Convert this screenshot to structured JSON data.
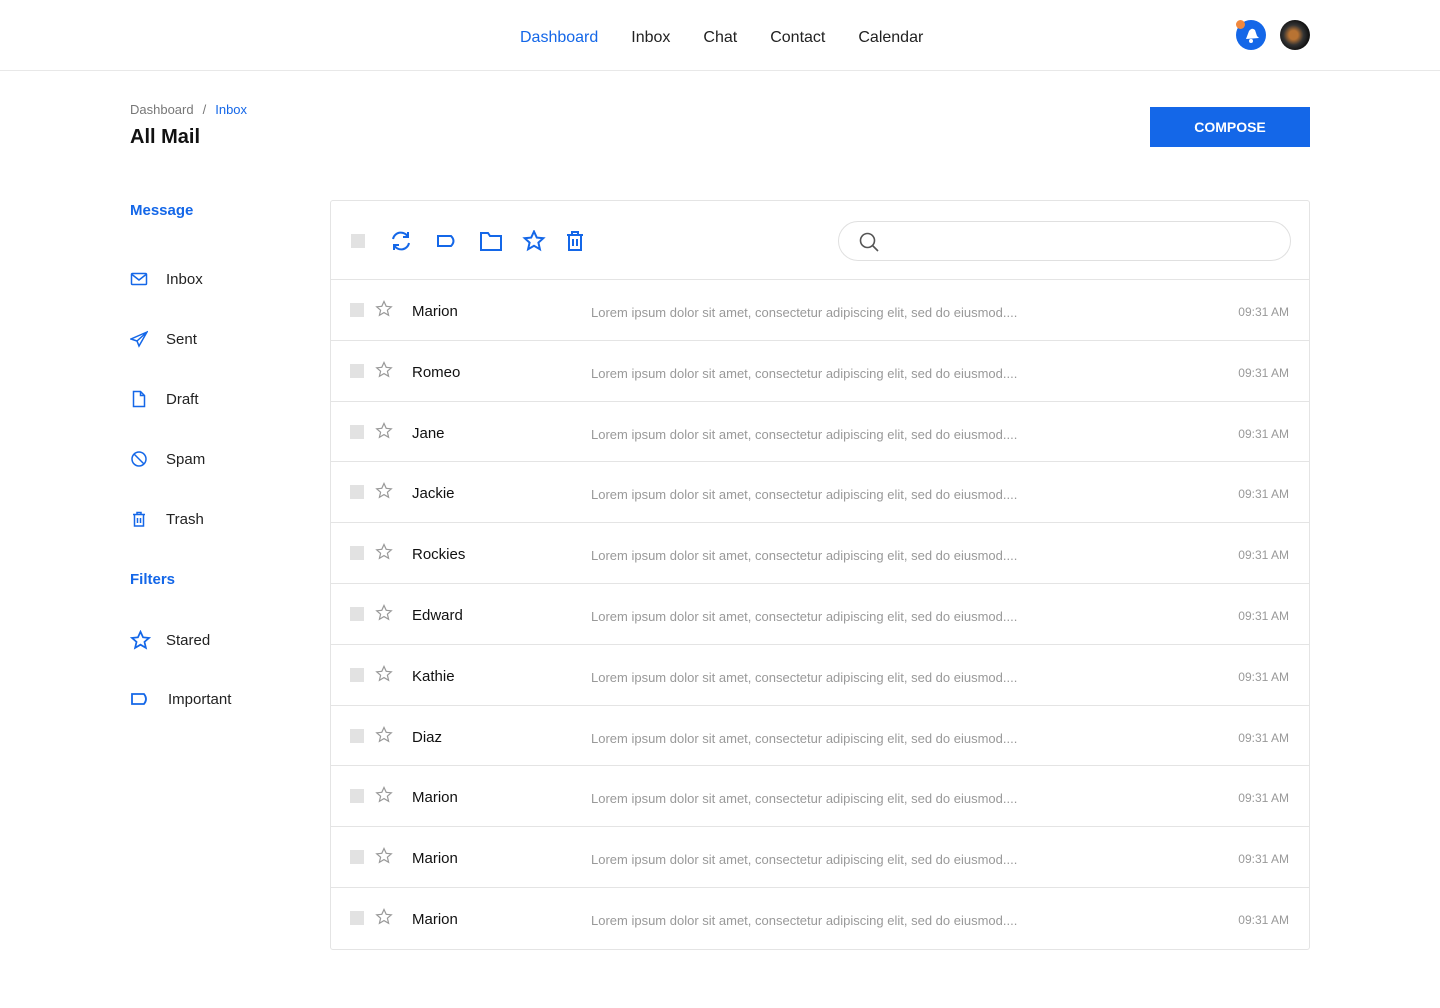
{
  "nav": {
    "items": [
      {
        "label": "Dashboard",
        "active": true
      },
      {
        "label": "Inbox"
      },
      {
        "label": "Chat"
      },
      {
        "label": "Contact"
      },
      {
        "label": "Calendar"
      }
    ]
  },
  "header": {
    "breadcrumb": [
      "Dashboard",
      "Inbox"
    ],
    "title": "All Mail",
    "compose_label": "COMPOSE"
  },
  "sidebar": {
    "message_heading": "Message",
    "items": [
      {
        "label": "Inbox",
        "icon": "mail-icon"
      },
      {
        "label": "Sent",
        "icon": "send-icon"
      },
      {
        "label": "Draft",
        "icon": "file-icon"
      },
      {
        "label": "Spam",
        "icon": "ban-icon"
      },
      {
        "label": "Trash",
        "icon": "trash-icon"
      }
    ],
    "filters_heading": "Filters",
    "filters": [
      {
        "label": "Stared",
        "icon": "star-icon"
      },
      {
        "label": "Important",
        "icon": "label-icon"
      }
    ]
  },
  "search": {
    "placeholder": ""
  },
  "colors": {
    "accent": "#1467e8",
    "notification": "#f0883e"
  },
  "emails": [
    {
      "name": "Marion",
      "preview": "Lorem ipsum dolor sit amet, consectetur adipiscing elit, sed do eiusmod....",
      "time": "09:31 AM"
    },
    {
      "name": "Romeo",
      "preview": "Lorem ipsum dolor sit amet, consectetur adipiscing elit, sed do eiusmod....",
      "time": "09:31 AM"
    },
    {
      "name": "Jane",
      "preview": "Lorem ipsum dolor sit amet, consectetur adipiscing elit, sed do eiusmod....",
      "time": "09:31 AM"
    },
    {
      "name": "Jackie",
      "preview": "Lorem ipsum dolor sit amet, consectetur adipiscing elit, sed do eiusmod....",
      "time": "09:31 AM"
    },
    {
      "name": "Rockies",
      "preview": "Lorem ipsum dolor sit amet, consectetur adipiscing elit, sed do eiusmod....",
      "time": "09:31 AM"
    },
    {
      "name": "Edward",
      "preview": "Lorem ipsum dolor sit amet, consectetur adipiscing elit, sed do eiusmod....",
      "time": "09:31 AM"
    },
    {
      "name": "Kathie",
      "preview": "Lorem ipsum dolor sit amet, consectetur adipiscing elit, sed do eiusmod....",
      "time": "09:31 AM"
    },
    {
      "name": "Diaz",
      "preview": "Lorem ipsum dolor sit amet, consectetur adipiscing elit, sed do eiusmod....",
      "time": "09:31 AM"
    },
    {
      "name": "Marion",
      "preview": "Lorem ipsum dolor sit amet, consectetur adipiscing elit, sed do eiusmod....",
      "time": "09:31 AM"
    },
    {
      "name": "Marion",
      "preview": "Lorem ipsum dolor sit amet, consectetur adipiscing elit, sed do eiusmod....",
      "time": "09:31 AM"
    },
    {
      "name": "Marion",
      "preview": "Lorem ipsum dolor sit amet, consectetur adipiscing elit, sed do eiusmod....",
      "time": "09:31 AM"
    }
  ]
}
